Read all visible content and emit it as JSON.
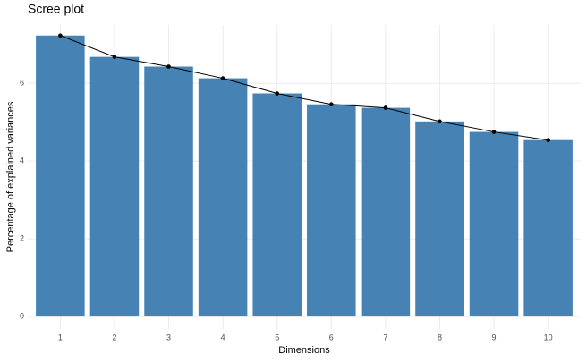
{
  "chart_data": {
    "type": "bar",
    "title": "Scree plot",
    "x_label": "Dimensions",
    "y_label": "Percentage of explained variances",
    "categories": [
      "1",
      "2",
      "3",
      "4",
      "5",
      "6",
      "7",
      "8",
      "9",
      "10"
    ],
    "values": [
      7.23,
      6.68,
      6.43,
      6.13,
      5.74,
      5.46,
      5.37,
      5.02,
      4.75,
      4.54
    ],
    "color": "#4682b4",
    "line_color": "#000000",
    "ylim": [
      -0.32,
      7.5
    ],
    "yticks": [
      0,
      2,
      4,
      6
    ],
    "grid": true
  }
}
